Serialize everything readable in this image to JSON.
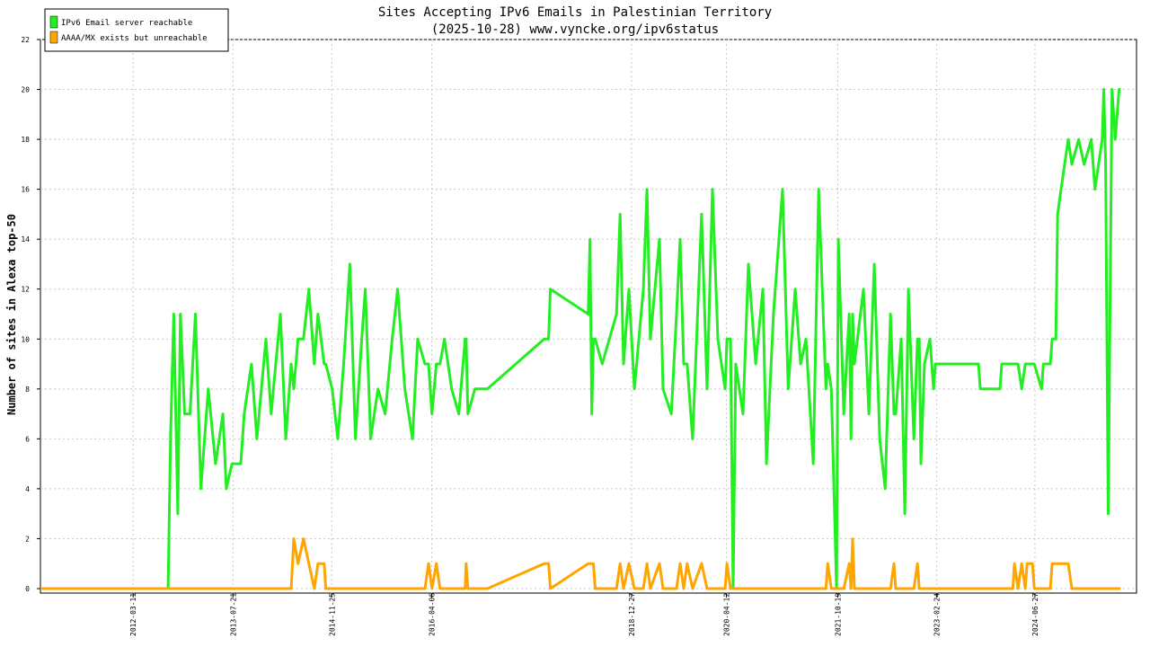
{
  "chart_data": {
    "type": "line",
    "title": "Sites Accepting IPv6 Emails in Palestinian Territory",
    "subtitle": "(2025-10-28) www.vyncke.org/ipv6status",
    "y_label": "Number of sites in Alexa top-50",
    "legend": "upper left",
    "grid": true,
    "xlim": [
      "2010-12-05",
      "2025-11-15"
    ],
    "xticks": [
      "2012-03-11",
      "2013-07-21",
      "2014-11-25",
      "2016-04-06",
      "2018-12-27",
      "2020-04-12",
      "2021-10-19",
      "2023-02-24",
      "2024-06-27"
    ],
    "ylim": [
      0,
      22
    ],
    "yticks": [
      0,
      2,
      4,
      6,
      8,
      10,
      12,
      14,
      16,
      18,
      20,
      22
    ],
    "x": [
      "2010-12-05",
      "2012-09-01",
      "2012-09-13",
      "2012-09-29",
      "2012-10-19",
      "2012-11-01",
      "2012-11-22",
      "2012-12-19",
      "2013-01-15",
      "2013-02-11",
      "2013-03-20",
      "2013-04-25",
      "2013-06-01",
      "2013-06-18",
      "2013-07-16",
      "2013-08-29",
      "2013-09-15",
      "2013-10-21",
      "2013-11-17",
      "2014-01-01",
      "2014-01-27",
      "2014-03-14",
      "2014-04-10",
      "2014-05-07",
      "2014-05-20",
      "2014-06-10",
      "2014-07-07",
      "2014-08-03",
      "2014-08-30",
      "2014-09-17",
      "2014-10-18",
      "2014-10-26",
      "2014-11-27",
      "2014-12-25",
      "2015-01-23",
      "2015-02-23",
      "2015-03-23",
      "2015-04-23",
      "2015-05-11",
      "2015-06-07",
      "2015-07-13",
      "2015-08-18",
      "2015-09-22",
      "2015-10-19",
      "2015-11-24",
      "2016-01-01",
      "2016-01-27",
      "2016-03-03",
      "2016-03-21",
      "2016-04-07",
      "2016-04-29",
      "2016-05-17",
      "2016-06-08",
      "2016-07-14",
      "2016-08-19",
      "2016-09-19",
      "2016-09-24",
      "2016-10-03",
      "2016-11-07",
      "2017-01-08",
      "2017-10-18",
      "2017-11-09",
      "2017-11-18",
      "2018-05-25",
      "2018-06-03",
      "2018-06-12",
      "2018-06-20",
      "2018-06-29",
      "2018-08-03",
      "2018-10-13",
      "2018-10-31",
      "2018-11-17",
      "2018-12-14",
      "2019-01-10",
      "2019-02-24",
      "2019-03-14",
      "2019-03-31",
      "2019-05-15",
      "2019-06-02",
      "2019-07-13",
      "2019-08-08",
      "2019-08-26",
      "2019-09-13",
      "2019-09-30",
      "2019-10-27",
      "2019-12-11",
      "2020-01-07",
      "2020-02-03",
      "2020-03-01",
      "2020-04-06",
      "2020-04-15",
      "2020-05-03",
      "2020-05-16",
      "2020-05-29",
      "2020-07-04",
      "2020-07-31",
      "2020-09-05",
      "2020-10-11",
      "2020-10-29",
      "2020-12-03",
      "2021-01-17",
      "2021-02-14",
      "2021-03-21",
      "2021-04-17",
      "2021-05-14",
      "2021-06-19",
      "2021-07-16",
      "2021-08-21",
      "2021-08-30",
      "2021-09-17",
      "2021-10-13",
      "2021-10-22",
      "2021-11-18",
      "2021-12-15",
      "2021-12-24",
      "2022-01-01",
      "2022-01-10",
      "2022-02-24",
      "2022-03-23",
      "2022-04-19",
      "2022-05-16",
      "2022-06-12",
      "2022-07-09",
      "2022-07-26",
      "2022-08-04",
      "2022-08-31",
      "2022-09-18",
      "2022-10-06",
      "2022-11-02",
      "2022-11-20",
      "2022-11-29",
      "2022-12-07",
      "2022-12-25",
      "2023-01-21",
      "2023-02-08",
      "2023-02-17",
      "2023-09-20",
      "2023-09-29",
      "2024-01-05",
      "2024-01-14",
      "2024-03-09",
      "2024-03-17",
      "2024-04-04",
      "2024-04-22",
      "2024-05-10",
      "2024-05-19",
      "2024-06-15",
      "2024-06-24",
      "2024-07-30",
      "2024-08-08",
      "2024-09-12",
      "2024-09-21",
      "2024-10-09",
      "2024-10-18",
      "2024-11-04",
      "2024-11-22",
      "2024-12-10",
      "2024-12-28",
      "2025-01-31",
      "2025-02-27",
      "2025-04-04",
      "2025-04-22",
      "2025-05-10",
      "2025-05-28",
      "2025-06-05",
      "2025-06-14",
      "2025-06-27",
      "2025-07-16",
      "2025-08-01",
      "2025-08-20",
      "2025-08-28"
    ],
    "series": [
      {
        "name": "IPv6 Email server reachable",
        "color": "#22ee22",
        "values": [
          0,
          0,
          6,
          11,
          3,
          11,
          7,
          7,
          11,
          4,
          8,
          5,
          7,
          4,
          5,
          5,
          7,
          9,
          6,
          10,
          7,
          11,
          6,
          9,
          8,
          10,
          10,
          12,
          9,
          11,
          9,
          9,
          8,
          6,
          9,
          13,
          6,
          10,
          12,
          6,
          8,
          7,
          10,
          12,
          8,
          6,
          10,
          9,
          9,
          7,
          9,
          9,
          10,
          8,
          7,
          10,
          10,
          7,
          8,
          8,
          10,
          10,
          12,
          11,
          14,
          7,
          10,
          10,
          9,
          11,
          15,
          9,
          12,
          8,
          12,
          16,
          10,
          14,
          8,
          7,
          11,
          14,
          9,
          9,
          6,
          15,
          8,
          16,
          10,
          8,
          10,
          10,
          0,
          9,
          7,
          13,
          9,
          12,
          5,
          11,
          16,
          8,
          12,
          9,
          10,
          5,
          16,
          8,
          9,
          8,
          0,
          14,
          7,
          11,
          6,
          11,
          9,
          12,
          7,
          13,
          6,
          4,
          11,
          7,
          7,
          10,
          3,
          12,
          6,
          10,
          10,
          5,
          9,
          10,
          8,
          9,
          9,
          8,
          8,
          9,
          9,
          9,
          9,
          8,
          9,
          9,
          9,
          9,
          8,
          9,
          9,
          10,
          10,
          15,
          16,
          17,
          18,
          17,
          18,
          17,
          18,
          16,
          17,
          18,
          20,
          17,
          3,
          20,
          18,
          20,
          20
        ]
      },
      {
        "name": "AAAA/MX exists but unreachable",
        "color": "#ffa500",
        "values": [
          0,
          0,
          0,
          0,
          0,
          0,
          0,
          0,
          0,
          0,
          0,
          0,
          0,
          0,
          0,
          0,
          0,
          0,
          0,
          0,
          0,
          0,
          0,
          0,
          2,
          1,
          2,
          1,
          0,
          1,
          1,
          0,
          0,
          0,
          0,
          0,
          0,
          0,
          0,
          0,
          0,
          0,
          0,
          0,
          0,
          0,
          0,
          0,
          1,
          0,
          1,
          0,
          0,
          0,
          0,
          0,
          1,
          0,
          0,
          0,
          1,
          1,
          0,
          1,
          1,
          1,
          1,
          0,
          0,
          0,
          1,
          0,
          1,
          0,
          0,
          1,
          0,
          1,
          0,
          0,
          0,
          1,
          0,
          1,
          0,
          1,
          0,
          0,
          0,
          0,
          1,
          0,
          0,
          0,
          0,
          0,
          0,
          0,
          0,
          0,
          0,
          0,
          0,
          0,
          0,
          0,
          0,
          0,
          1,
          0,
          0,
          0,
          0,
          1,
          0,
          2,
          0,
          0,
          0,
          0,
          0,
          0,
          0,
          1,
          0,
          0,
          0,
          0,
          0,
          1,
          0,
          0,
          0,
          0,
          0,
          0,
          0,
          0,
          0,
          0,
          0,
          1,
          0,
          1,
          0,
          1,
          1,
          0,
          0,
          0,
          0,
          1,
          1,
          1,
          1,
          1,
          1,
          0,
          0,
          0,
          0,
          0,
          0,
          0,
          0,
          0,
          0,
          0,
          0,
          0,
          0
        ]
      }
    ]
  }
}
